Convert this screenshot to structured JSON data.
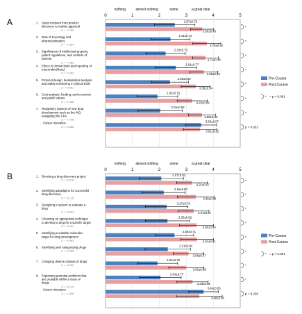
{
  "colors": {
    "pre": "#4f81bd",
    "post": "#e6a0a2",
    "frame": "#999999",
    "error": "#000000"
  },
  "chart_data": [
    {
      "type": "bar",
      "orientation": "horizontal",
      "panel": "A",
      "xlim": [
        0,
        5
      ],
      "xticks": [
        "0",
        "1",
        "2",
        "3",
        "4",
        "5"
      ],
      "scale_labels": [
        "nothing",
        "almost nothing",
        "some",
        "a great deal"
      ],
      "legend": {
        "placement": "right",
        "entries": [
          "Pre-Course",
          "Post-Course"
        ]
      },
      "sig_legend": "= p < 0.001",
      "sig_marker": "*",
      "categories": [
        {
          "number": "1.",
          "lines": [
            "Steps involved from product",
            "discovery to market approval"
          ],
          "z": "Z = -7.795"
        },
        {
          "number": "2.",
          "lines": [
            "Role of toxicology and",
            "pharmacokinetics"
          ],
          "z": "Z = -7.284"
        },
        {
          "number": "3.",
          "lines": [
            "Significance of intellectual property,",
            "patent regulations, and conflicts of",
            "interest"
          ],
          "z": "Z = -7.486"
        },
        {
          "number": "4.",
          "lines": [
            "Ethics in clinical trials and reporting of",
            "misconduct/fraud"
          ],
          "z": "Z = -7.282"
        },
        {
          "number": "5.",
          "lines": [
            "Protocol design, biostatistical analysis,",
            "and safety monitoring in clinical trials"
          ],
          "z": "Z = -6.801"
        },
        {
          "number": "6.",
          "lines": [
            "Cost analysis, funding, and economic",
            "and public values"
          ],
          "z": "Z = -7.456"
        },
        {
          "number": "7.",
          "lines": [
            "Regulatory aspects of new drug",
            "development such as the IND,",
            "navigating the FDA"
          ],
          "z": "Z = -7.796"
        },
        {
          "number": "",
          "lines": [
            "Career relevance"
          ],
          "z": "Z = -0.488"
        }
      ],
      "series": [
        {
          "name": "Pre-Course",
          "values": [
            2.57,
            2.41,
            2.23,
            2.61,
            2.39,
            1.93,
            2.03,
            3.55
          ],
          "errors": [
            0.75,
            0.72,
            0.73,
            0.77,
            0.69,
            0.75,
            0.82,
            0.57
          ],
          "labels": [
            "2.57±0.75",
            "2.41±0.72",
            "2.23±0.73",
            "2.61±0.77",
            "2.39±0.69",
            "1.93±0.75",
            "2.03±0.82",
            "3.55±0.57"
          ]
        },
        {
          "name": "Post-Course",
          "values": [
            3.59,
            3.76,
            3.71,
            3.65,
            3.35,
            3.22,
            3.58,
            3.51
          ],
          "errors": [
            0.43,
            0.52,
            0.48,
            0.52,
            0.54,
            0.56,
            0.5,
            0.62
          ],
          "labels": [
            "3.59±0.43",
            "3.76±0.52",
            "3.71±0.48",
            "3.65±0.52",
            "3.35±0.54",
            "3.22±0.56",
            "3.58±0.50",
            "3.51±0.62"
          ]
        }
      ],
      "significant": [
        true,
        true,
        true,
        true,
        true,
        true,
        true,
        false
      ],
      "last_p": "p = 0.631"
    },
    {
      "type": "bar",
      "orientation": "horizontal",
      "panel": "B",
      "xlim": [
        0,
        5
      ],
      "xticks": [
        "0",
        "1",
        "2",
        "3",
        "4",
        "5"
      ],
      "scale_labels": [
        "nothing",
        "almost nothing",
        "some",
        "a great deal"
      ],
      "legend": {
        "placement": "right",
        "entries": [
          "Pre-Course",
          "Post-Course"
        ]
      },
      "sig_legend": "= p < 0.001",
      "sig_marker": "*",
      "categories": [
        {
          "number": "1.",
          "lines": [
            "Directing a drug discovery project"
          ],
          "z": "Z = -5.078"
        },
        {
          "number": "2.",
          "lines": [
            "Identifying paradigms for successful",
            "drug discovery"
          ],
          "z": "Z = -5.115"
        },
        {
          "number": "3.",
          "lines": [
            "Designing a system to evaluate a",
            "drug"
          ],
          "z": "Z = -4.624"
        },
        {
          "number": "4.",
          "lines": [
            "Choosing an appropriate technique",
            "to develop a drug for a specific target"
          ],
          "z": "Z = -5.161"
        },
        {
          "number": "5.",
          "lines": [
            "Identifying a suitable molecular",
            "target for drug development"
          ],
          "z": "Z = -4.385"
        },
        {
          "number": "6.",
          "lines": [
            "Identifying and categorizing drugs"
          ],
          "z": "Z = -4.056"
        },
        {
          "number": "7.",
          "lines": [
            "Critiquing diverse classes of drugs"
          ],
          "z": "Z = -5.232"
        },
        {
          "number": "8.",
          "lines": [
            "Explaining potential problems that",
            "are probable within a class of",
            "drugs"
          ],
          "z": "Z = -5.114"
        },
        {
          "number": "",
          "lines": [
            "Career relevance"
          ],
          "z": "Z = -1.306"
        }
      ],
      "series": [
        {
          "name": "Pre-Course",
          "values": [
            2.07,
            2.16,
            2.27,
            2.3,
            2.56,
            2.31,
            1.93,
            2.04,
            3.64
          ],
          "errors": [
            0.82,
            0.8,
            0.79,
            0.82,
            0.71,
            0.84,
            0.75,
            0.77,
            0.55
          ],
          "labels": [
            "2.07±0.82",
            "2.16±0.80",
            "2.27±0.79",
            "2.30±0.82",
            "2.56±0.71",
            "2.31±0.84",
            "1.93±0.75",
            "2.04±0.77",
            "3.64±0.55"
          ]
        },
        {
          "name": "Post-Course",
          "values": [
            3.21,
            3.35,
            3.27,
            3.38,
            3.4,
            3.08,
            3.0,
            3.23,
            3.48
          ],
          "errors": [
            0.57,
            0.68,
            0.57,
            0.63,
            0.61,
            0.57,
            0.65,
            0.58,
            0.85
          ],
          "labels": [
            "3.21±0.57",
            "3.35±0.68",
            "3.27±0.57",
            "3.38±0.63",
            "3.40±0.61",
            "3.08±0.57",
            "3.00±0.65",
            "3.23±0.58",
            "3.48±0.85"
          ]
        }
      ],
      "significant": [
        true,
        true,
        true,
        true,
        true,
        true,
        true,
        true,
        false
      ],
      "last_p": "p = 0.228"
    }
  ]
}
